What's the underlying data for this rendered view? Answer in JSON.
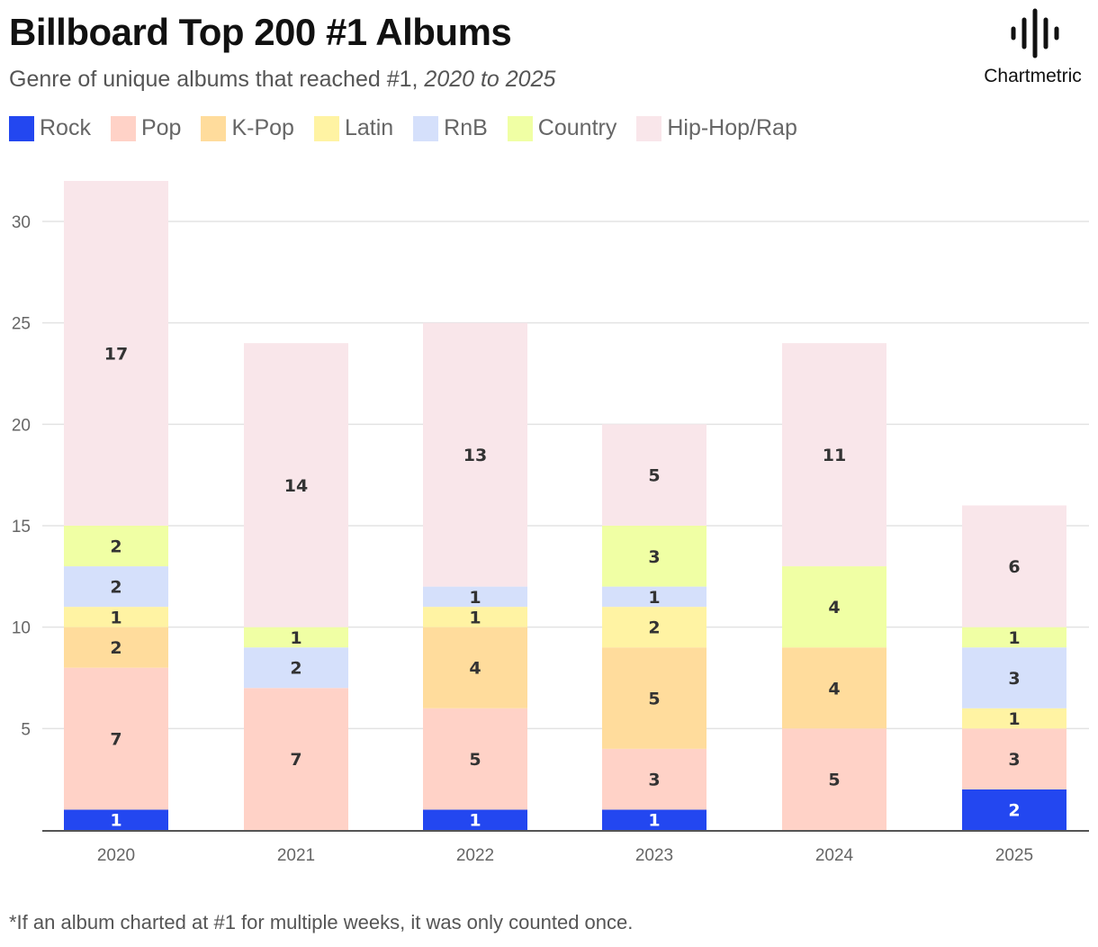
{
  "header": {
    "title": "Billboard Top 200 #1 Albums",
    "subtitle_plain": "Genre of unique albums that reached #1, ",
    "subtitle_italic": "2020 to 2025"
  },
  "logo": {
    "text": "Chartmetric",
    "icon": "soundwave-icon"
  },
  "footnote": "*If an album charted at #1 for multiple weeks, it was only counted once.",
  "chart_data": {
    "type": "bar",
    "stacked": true,
    "categories": [
      "2020",
      "2021",
      "2022",
      "2023",
      "2024",
      "2025"
    ],
    "ylim": [
      0,
      32
    ],
    "yticks": [
      5,
      10,
      15,
      20,
      25,
      30
    ],
    "grid": true,
    "legend": "top-left",
    "series": [
      {
        "name": "Rock",
        "color": "#2347f0",
        "values": [
          1,
          0,
          1,
          1,
          0,
          2
        ]
      },
      {
        "name": "Pop",
        "color": "#ffd2c7",
        "values": [
          7,
          7,
          5,
          3,
          5,
          3
        ]
      },
      {
        "name": "K-Pop",
        "color": "#ffdc9c",
        "values": [
          2,
          0,
          4,
          5,
          4,
          0
        ]
      },
      {
        "name": "Latin",
        "color": "#fff3a3",
        "values": [
          1,
          0,
          1,
          2,
          0,
          1
        ]
      },
      {
        "name": "RnB",
        "color": "#d5e0fb",
        "values": [
          2,
          2,
          1,
          1,
          0,
          3
        ]
      },
      {
        "name": "Country",
        "color": "#f0ffa4",
        "values": [
          2,
          1,
          0,
          3,
          4,
          1
        ]
      },
      {
        "name": "Hip-Hop/Rap",
        "color": "#f9e6ea",
        "values": [
          17,
          14,
          13,
          5,
          11,
          6
        ]
      }
    ]
  }
}
